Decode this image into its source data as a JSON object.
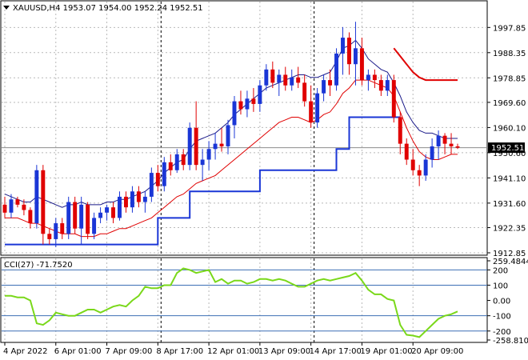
{
  "symbol_header": {
    "symbol": "XAUUSD,H4",
    "ohlc": "1953.07 1954.00 1952.24 1952.51"
  },
  "current_price_label": "1952.51",
  "cci_header": "CCI(27) -71.7520",
  "colors": {
    "bull": "#1a36d6",
    "bear": "#e00000",
    "upper_band": "#1b1b8a",
    "lower_band": "#e00000",
    "trailing_stop": "#1a36d6",
    "resistance": "#e00000",
    "cci": "#7ad81a",
    "cci_levels": "#3d6fb5"
  },
  "chart_data": [
    {
      "type": "candlestick",
      "ylim": [
        1912.85,
        2007.0
      ],
      "y_ticks": [
        "1997.85",
        "1988.35",
        "1978.85",
        "1969.60",
        "1960.10",
        "1950.60",
        "1941.10",
        "1931.60",
        "1922.35",
        "1912.85"
      ],
      "x_ticks": [
        "4 Apr 2022",
        "6 Apr 01:00",
        "7 Apr 09:00",
        "8 Apr 17:00",
        "12 Apr 01:00",
        "13 Apr 09:00",
        "14 Apr 17:00",
        "19 Apr 01:00",
        "20 Apr 09:00"
      ],
      "ohlc": [
        [
          1931,
          1934,
          1926,
          1928
        ],
        [
          1928,
          1935,
          1926,
          1933
        ],
        [
          1933,
          1934,
          1930,
          1931
        ],
        [
          1931,
          1933,
          1927,
          1929
        ],
        [
          1929,
          1930,
          1922,
          1924
        ],
        [
          1924,
          1946,
          1922,
          1944
        ],
        [
          1944,
          1946,
          1916,
          1920
        ],
        [
          1920,
          1922,
          1916,
          1918
        ],
        [
          1918,
          1926,
          1915,
          1924
        ],
        [
          1924,
          1926,
          1918,
          1920
        ],
        [
          1920,
          1934,
          1918,
          1932
        ],
        [
          1932,
          1934,
          1920,
          1922
        ],
        [
          1922,
          1934,
          1916,
          1931
        ],
        [
          1931,
          1932,
          1918,
          1920
        ],
        [
          1920,
          1928,
          1918,
          1926
        ],
        [
          1926,
          1930,
          1924,
          1928
        ],
        [
          1928,
          1931,
          1925,
          1930
        ],
        [
          1930,
          1932,
          1924,
          1926
        ],
        [
          1926,
          1936,
          1925,
          1934
        ],
        [
          1934,
          1936,
          1928,
          1930
        ],
        [
          1930,
          1938,
          1928,
          1936
        ],
        [
          1936,
          1938,
          1930,
          1932
        ],
        [
          1932,
          1936,
          1928,
          1934
        ],
        [
          1934,
          1945,
          1932,
          1943
        ],
        [
          1943,
          1946,
          1936,
          1938
        ],
        [
          1938,
          1949,
          1936,
          1947
        ],
        [
          1947,
          1950,
          1942,
          1944
        ],
        [
          1944,
          1952,
          1943,
          1950
        ],
        [
          1950,
          1952,
          1944,
          1946
        ],
        [
          1946,
          1962,
          1944,
          1960
        ],
        [
          1960,
          1970,
          1944,
          1946
        ],
        [
          1946,
          1952,
          1940,
          1948
        ],
        [
          1948,
          1955,
          1944,
          1952
        ],
        [
          1952,
          1958,
          1948,
          1954
        ],
        [
          1954,
          1960,
          1951,
          1953
        ],
        [
          1953,
          1963,
          1950,
          1961
        ],
        [
          1961,
          1972,
          1956,
          1970
        ],
        [
          1970,
          1974,
          1965,
          1967
        ],
        [
          1967,
          1974,
          1964,
          1971
        ],
        [
          1971,
          1975,
          1966,
          1969
        ],
        [
          1969,
          1978,
          1966,
          1976
        ],
        [
          1976,
          1984,
          1974,
          1982
        ],
        [
          1982,
          1985,
          1975,
          1977
        ],
        [
          1977,
          1982,
          1972,
          1980
        ],
        [
          1980,
          1983,
          1974,
          1976
        ],
        [
          1976,
          1982,
          1974,
          1979
        ],
        [
          1979,
          1983,
          1975,
          1977
        ],
        [
          1977,
          1980,
          1968,
          1970
        ],
        [
          1970,
          1976,
          1960,
          1962
        ],
        [
          1962,
          1975,
          1960,
          1973
        ],
        [
          1973,
          1980,
          1970,
          1978
        ],
        [
          1978,
          1982,
          1972,
          1976
        ],
        [
          1976,
          1990,
          1974,
          1988
        ],
        [
          1988,
          1998,
          1980,
          1994
        ],
        [
          1994,
          1996,
          1980,
          1984
        ],
        [
          1984,
          2000,
          1976,
          1990
        ],
        [
          1990,
          1994,
          1976,
          1978
        ],
        [
          1978,
          1982,
          1974,
          1980
        ],
        [
          1980,
          1982,
          1975,
          1978
        ],
        [
          1978,
          1980,
          1972,
          1974
        ],
        [
          1974,
          1980,
          1972,
          1978
        ],
        [
          1978,
          1980,
          1962,
          1964
        ],
        [
          1964,
          1966,
          1950,
          1954
        ],
        [
          1954,
          1956,
          1946,
          1948
        ],
        [
          1948,
          1952,
          1942,
          1944
        ],
        [
          1944,
          1946,
          1938,
          1942
        ],
        [
          1942,
          1950,
          1940,
          1948
        ],
        [
          1948,
          1956,
          1945,
          1953
        ],
        [
          1953,
          1959,
          1948,
          1957
        ],
        [
          1957,
          1958,
          1950,
          1954
        ],
        [
          1954,
          1958,
          1950,
          1953
        ],
        [
          1953,
          1954,
          1952,
          1952.5
        ]
      ],
      "upper_band": [
        1935,
        1934,
        1933,
        1932,
        1932,
        1934,
        1933,
        1932,
        1931,
        1930,
        1931,
        1931,
        1932,
        1931,
        1931,
        1931,
        1932,
        1932,
        1933,
        1933,
        1934,
        1935,
        1936,
        1938,
        1940,
        1943,
        1945,
        1947,
        1948,
        1952,
        1955,
        1956,
        1957,
        1958,
        1960,
        1962,
        1965,
        1967,
        1969,
        1971,
        1973,
        1975,
        1976,
        1977,
        1978,
        1979,
        1980,
        1980,
        1979,
        1979,
        1980,
        1981,
        1985,
        1990,
        1991,
        1993,
        1990,
        1986,
        1984,
        1982,
        1981,
        1977,
        1972,
        1966,
        1962,
        1959,
        1958,
        1958,
        1957,
        1956,
        1956,
        1956
      ],
      "lower_band": [
        1926,
        1926,
        1926,
        1925,
        1924,
        1924,
        1923,
        1922,
        1921,
        1920,
        1920,
        1920,
        1919,
        1919,
        1919,
        1920,
        1920,
        1921,
        1922,
        1922,
        1923,
        1924,
        1925,
        1926,
        1928,
        1930,
        1932,
        1934,
        1935,
        1937,
        1939,
        1940,
        1941,
        1942,
        1944,
        1946,
        1948,
        1950,
        1952,
        1954,
        1956,
        1958,
        1960,
        1962,
        1963,
        1964,
        1964,
        1963,
        1962,
        1963,
        1965,
        1966,
        1969,
        1973,
        1975,
        1978,
        1978,
        1978,
        1977,
        1976,
        1975,
        1972,
        1966,
        1960,
        1955,
        1951,
        1949,
        1948,
        1948,
        1949,
        1950,
        1950
      ],
      "trailing_stop": [
        1916,
        1916,
        1916,
        1916,
        1916,
        1916,
        1916,
        1916,
        1916,
        1916,
        1916,
        1916,
        1916,
        1916,
        1916,
        1916,
        1916,
        1916,
        1916,
        1916,
        1916,
        1916,
        1916,
        1916,
        1926,
        1926,
        1926,
        1926,
        1926,
        1936,
        1936,
        1936,
        1936,
        1936,
        1936,
        1936,
        1936,
        1936,
        1936,
        1936,
        1944,
        1944,
        1944,
        1944,
        1944,
        1944,
        1944,
        1944,
        1944,
        1944,
        1944,
        1944,
        1952,
        1952,
        1964,
        1964,
        1964,
        1964,
        1964,
        1964,
        1964,
        1964
      ],
      "resistance": [
        [
          61,
          1990
        ],
        [
          62,
          1987
        ],
        [
          63,
          1984
        ],
        [
          64,
          1981
        ],
        [
          65,
          1979
        ],
        [
          66,
          1978
        ],
        [
          67,
          1978
        ],
        [
          68,
          1978
        ],
        [
          69,
          1978
        ],
        [
          70,
          1978
        ],
        [
          71,
          1978
        ]
      ]
    },
    {
      "type": "line",
      "ylim": [
        -258.8102,
        259.4844
      ],
      "y_ticks": [
        "259.4844",
        "200",
        "100",
        "0.00",
        "-100",
        "-200",
        "-258.8102"
      ],
      "levels": [
        200,
        100,
        -100,
        -200
      ],
      "values": [
        30,
        30,
        20,
        20,
        0,
        -150,
        -160,
        -130,
        -80,
        -90,
        -100,
        -100,
        -80,
        -60,
        -60,
        -80,
        -60,
        -40,
        -30,
        -40,
        0,
        30,
        90,
        80,
        80,
        100,
        100,
        180,
        210,
        200,
        180,
        190,
        200,
        120,
        140,
        110,
        130,
        130,
        110,
        120,
        140,
        140,
        130,
        140,
        130,
        110,
        90,
        90,
        110,
        130,
        140,
        130,
        140,
        150,
        160,
        180,
        130,
        70,
        40,
        40,
        10,
        0,
        -160,
        -225,
        -230,
        -240,
        -200,
        -160,
        -120,
        -100,
        -90,
        -72
      ]
    }
  ]
}
